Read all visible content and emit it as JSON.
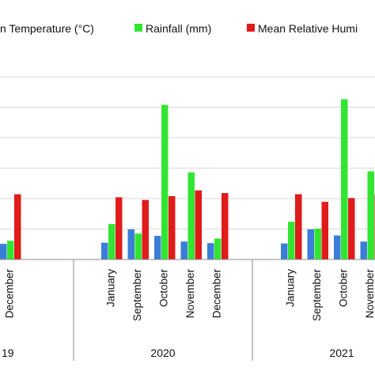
{
  "chart_data": {
    "type": "bar",
    "legend": [
      {
        "name": "n Temperature (°C)",
        "color": "#3B7DD8"
      },
      {
        "name": "Rainfall (mm)",
        "color": "#33E533"
      },
      {
        "name": "Mean Relative Humi",
        "color": "#E01B1B"
      }
    ],
    "legend_position": "top",
    "grid": true,
    "groups": [
      {
        "year": "19",
        "months": [
          {
            "label": "December",
            "values": [
              20.5,
              24.5,
              85.5
            ]
          }
        ]
      },
      {
        "year": "2020",
        "months": [
          {
            "label": "January",
            "values": [
              22,
              46.5,
              81.5
            ]
          },
          {
            "label": "September",
            "values": [
              39.5,
              34,
              78
            ]
          },
          {
            "label": "October",
            "values": [
              31,
              202.5,
              83
            ]
          },
          {
            "label": "November",
            "values": [
              23.5,
              114,
              90.5
            ]
          },
          {
            "label": "December",
            "values": [
              21.5,
              27.5,
              87
            ]
          }
        ]
      },
      {
        "year": "2021",
        "months": [
          {
            "label": "January",
            "values": [
              21,
              49.5,
              85.5
            ]
          },
          {
            "label": "September",
            "values": [
              39.5,
              40.5,
              75.5
            ]
          },
          {
            "label": "October",
            "values": [
              31.5,
              210,
              80.5
            ]
          },
          {
            "label": "November",
            "values": [
              23.5,
              115.5,
              85.5
            ]
          }
        ]
      }
    ]
  }
}
